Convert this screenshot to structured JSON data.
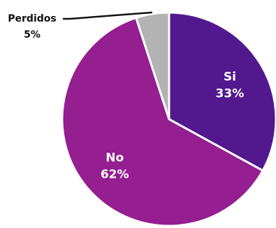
{
  "chart_data": {
    "type": "pie",
    "slices": [
      {
        "label": "Si",
        "value": 33,
        "display": "33%",
        "color": "#52198f",
        "label_position": "inside"
      },
      {
        "label": "No",
        "value": 62,
        "display": "62%",
        "color": "#951e90",
        "label_position": "inside"
      },
      {
        "label": "Perdidos",
        "value": 5,
        "display": "5%",
        "color": "#b3b3b3",
        "label_position": "outside"
      }
    ],
    "start_direction": "top",
    "direction": "clockwise",
    "legend": "none"
  }
}
